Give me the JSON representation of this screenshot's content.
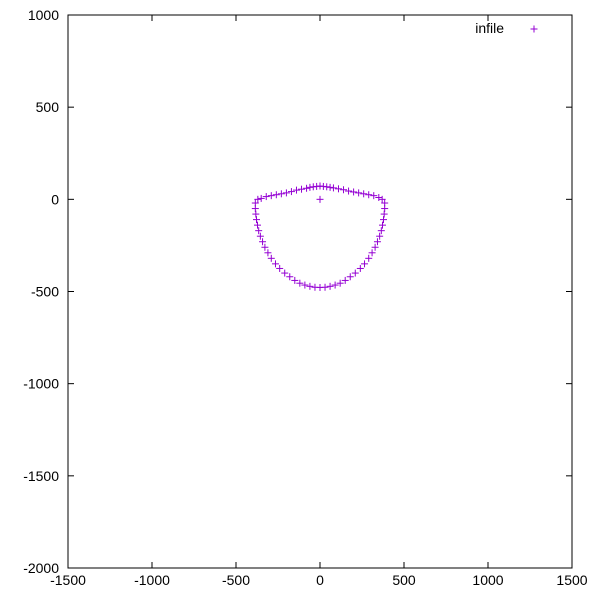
{
  "chart_data": {
    "type": "scatter",
    "title": "",
    "xlabel": "",
    "ylabel": "",
    "xlim": [
      -1500,
      1500
    ],
    "ylim": [
      -2000,
      1000
    ],
    "xticks": [
      -1500,
      -1000,
      -500,
      0,
      500,
      1000,
      1500
    ],
    "yticks": [
      -2000,
      -1500,
      -1000,
      -500,
      0,
      500,
      1000
    ],
    "xtick_labels": [
      "-1500",
      "-1000",
      "-500",
      "0",
      "500",
      "1000",
      "1500"
    ],
    "ytick_labels": [
      "-2000",
      "-1500",
      "-1000",
      "-500",
      "0",
      "500",
      "1000"
    ],
    "grid": false,
    "legend_position": "top-right",
    "marker": "plus",
    "series": [
      {
        "name": "infile",
        "color": "#9400d3",
        "points": [
          [
            0,
            0
          ],
          [
            -370,
            0
          ],
          [
            -350,
            5
          ],
          [
            -320,
            15
          ],
          [
            -290,
            20
          ],
          [
            -260,
            25
          ],
          [
            -230,
            30
          ],
          [
            -200,
            35
          ],
          [
            -170,
            42
          ],
          [
            -140,
            50
          ],
          [
            -110,
            55
          ],
          [
            -80,
            60
          ],
          [
            -60,
            65
          ],
          [
            -40,
            68
          ],
          [
            -20,
            70
          ],
          [
            0,
            72
          ],
          [
            20,
            70
          ],
          [
            40,
            68
          ],
          [
            60,
            65
          ],
          [
            80,
            62
          ],
          [
            110,
            57
          ],
          [
            140,
            52
          ],
          [
            170,
            45
          ],
          [
            200,
            40
          ],
          [
            230,
            35
          ],
          [
            260,
            30
          ],
          [
            290,
            25
          ],
          [
            320,
            20
          ],
          [
            350,
            10
          ],
          [
            370,
            0
          ],
          [
            -385,
            -20
          ],
          [
            -385,
            -50
          ],
          [
            -382,
            -80
          ],
          [
            -378,
            -110
          ],
          [
            -372,
            -140
          ],
          [
            -365,
            -170
          ],
          [
            -355,
            -200
          ],
          [
            -342,
            -230
          ],
          [
            -328,
            -260
          ],
          [
            -310,
            -290
          ],
          [
            -290,
            -320
          ],
          [
            -265,
            -350
          ],
          [
            -240,
            -375
          ],
          [
            -210,
            -400
          ],
          [
            -180,
            -420
          ],
          [
            -150,
            -440
          ],
          [
            -120,
            -455
          ],
          [
            -90,
            -465
          ],
          [
            -60,
            -472
          ],
          [
            -30,
            -477
          ],
          [
            0,
            -478
          ],
          [
            30,
            -477
          ],
          [
            60,
            -472
          ],
          [
            90,
            -465
          ],
          [
            120,
            -455
          ],
          [
            150,
            -440
          ],
          [
            180,
            -420
          ],
          [
            210,
            -400
          ],
          [
            240,
            -375
          ],
          [
            265,
            -350
          ],
          [
            290,
            -320
          ],
          [
            310,
            -290
          ],
          [
            328,
            -260
          ],
          [
            342,
            -230
          ],
          [
            355,
            -200
          ],
          [
            365,
            -170
          ],
          [
            372,
            -140
          ],
          [
            378,
            -110
          ],
          [
            382,
            -80
          ],
          [
            385,
            -50
          ],
          [
            385,
            -20
          ]
        ]
      }
    ]
  }
}
